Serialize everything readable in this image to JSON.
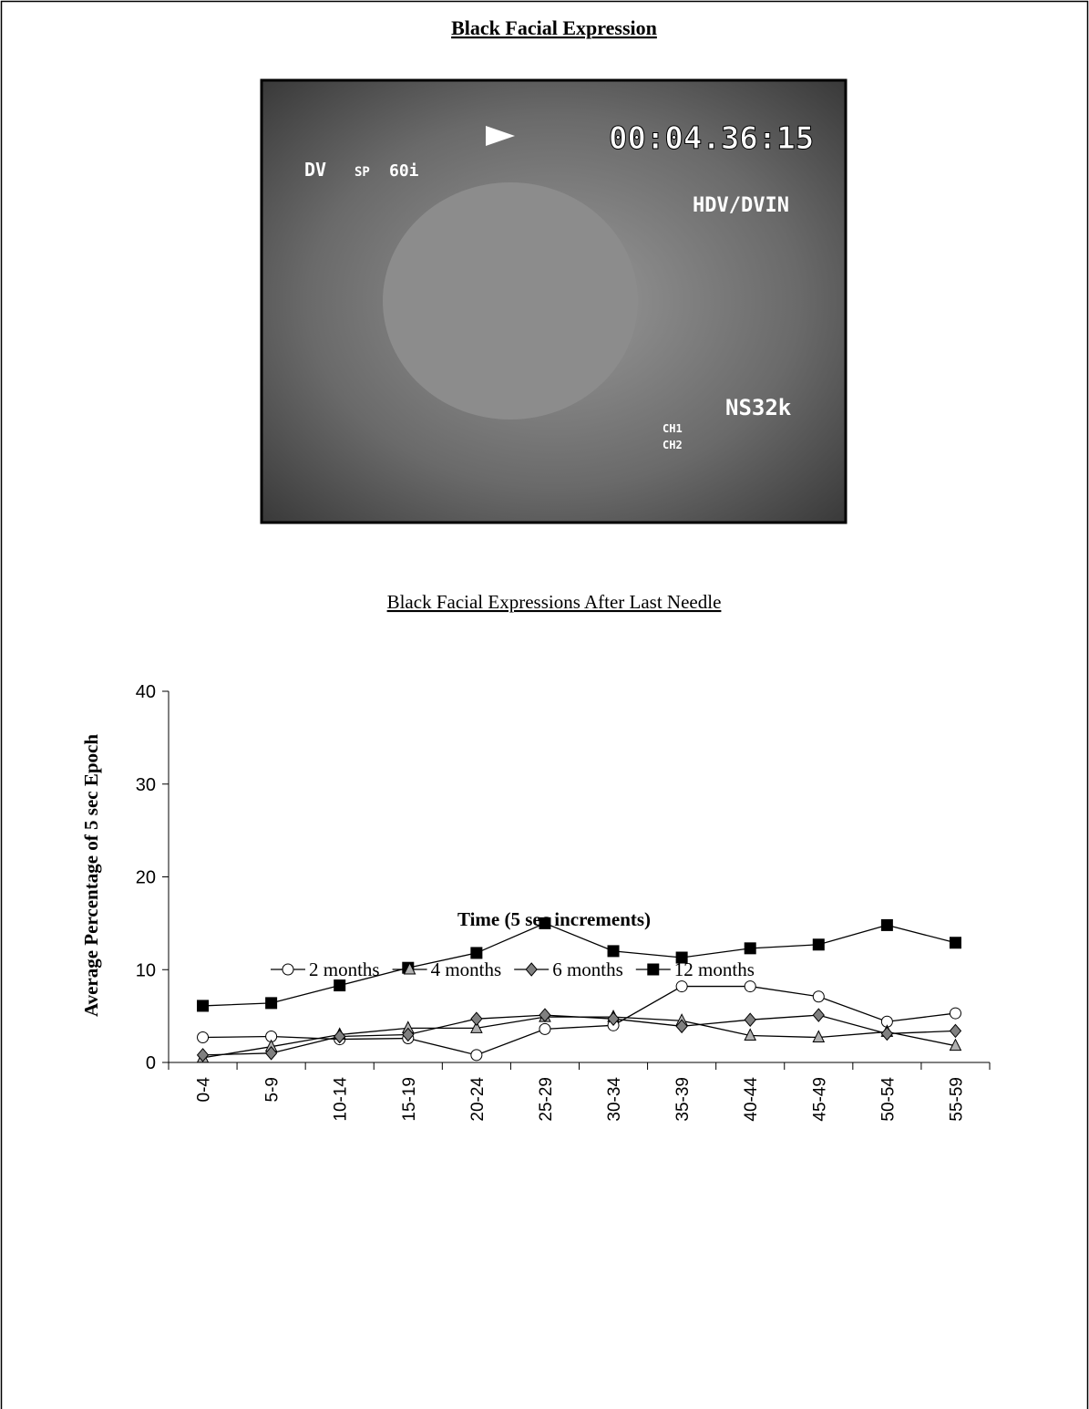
{
  "header": {
    "title": "Black Facial Expression"
  },
  "photo": {
    "timecode": "00:04.36:15",
    "format": "DV",
    "mode": "SP",
    "rate": "60i",
    "input": "HDV/DVIN",
    "audio": "NS32k",
    "ch1": "CH1",
    "ch2": "CH2"
  },
  "chart_data": {
    "type": "line",
    "title": "Black Facial Expressions After Last Needle",
    "x_label": "Time (5 sec increments)",
    "y_label": "Average Percentage of 5 sec Epoch",
    "categories": [
      "0-4",
      "5-9",
      "10-14",
      "15-19",
      "20-24",
      "25-29",
      "30-34",
      "35-39",
      "40-44",
      "45-49",
      "50-54",
      "55-59"
    ],
    "ylim": [
      0,
      40
    ],
    "yticks": [
      0,
      10,
      20,
      30,
      40
    ],
    "grid": false,
    "legend": "bottom",
    "series": [
      {
        "name": "2 months",
        "color": "#ffffff",
        "marker": "circle",
        "values": [
          2.7,
          2.8,
          2.5,
          2.6,
          0.8,
          3.6,
          4.0,
          8.2,
          8.2,
          7.1,
          4.4,
          5.3
        ]
      },
      {
        "name": "4 months",
        "color": "#b0b0b0",
        "marker": "triangle",
        "values": [
          0.5,
          1.7,
          3.0,
          3.7,
          3.7,
          4.9,
          4.9,
          4.5,
          2.9,
          2.7,
          3.3,
          1.8
        ]
      },
      {
        "name": "6 months",
        "color": "#808080",
        "marker": "diamond",
        "values": [
          0.8,
          1.0,
          2.8,
          3.0,
          4.7,
          5.1,
          4.7,
          3.9,
          4.6,
          5.1,
          3.1,
          3.4
        ]
      },
      {
        "name": "12 months",
        "color": "#000000",
        "marker": "square",
        "values": [
          6.1,
          6.4,
          8.3,
          10.2,
          11.8,
          15.0,
          12.0,
          11.3,
          12.3,
          12.7,
          14.8,
          12.9
        ]
      }
    ]
  }
}
